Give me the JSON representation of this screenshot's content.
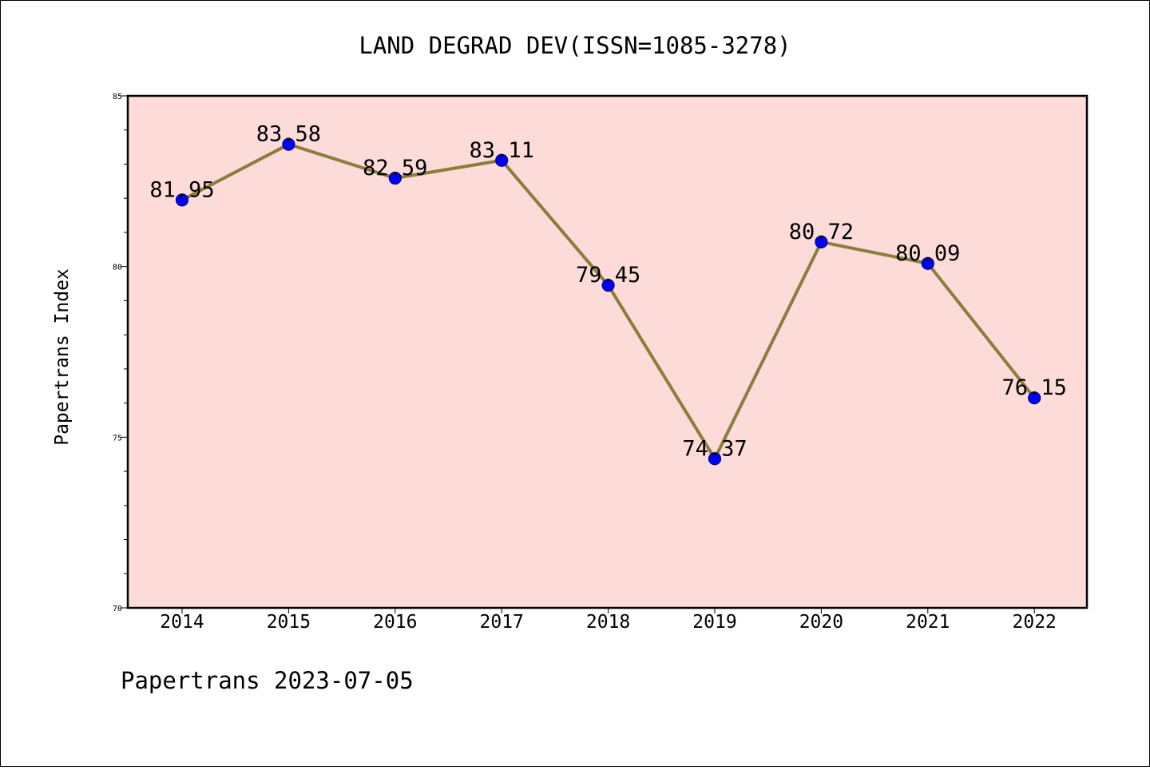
{
  "chart_data": {
    "type": "line",
    "title": "LAND DEGRAD DEV(ISSN=1085-3278)",
    "xlabel": "",
    "ylabel": "Papertrans Index",
    "categories": [
      "2014",
      "2015",
      "2016",
      "2017",
      "2018",
      "2019",
      "2020",
      "2021",
      "2022"
    ],
    "series": [
      {
        "values": [
          81.95,
          83.58,
          82.59,
          83.11,
          79.45,
          74.37,
          80.72,
          80.09,
          76.15
        ]
      }
    ],
    "data_labels": [
      "81.95",
      "83.58",
      "82.59",
      "83.11",
      "79.45",
      "74.37",
      "80.72",
      "80.09",
      "76.15"
    ],
    "ylim": [
      70,
      85
    ],
    "yticks": [
      "70",
      "75",
      "80",
      "85"
    ],
    "grid": false,
    "legend": "none",
    "colors": {
      "plot_background": "#fddbd8",
      "line": "#8b7d3a",
      "marker": "#0000ff",
      "marker_edge": "#000080"
    }
  },
  "footer": {
    "text": "Papertrans 2023-07-05"
  }
}
